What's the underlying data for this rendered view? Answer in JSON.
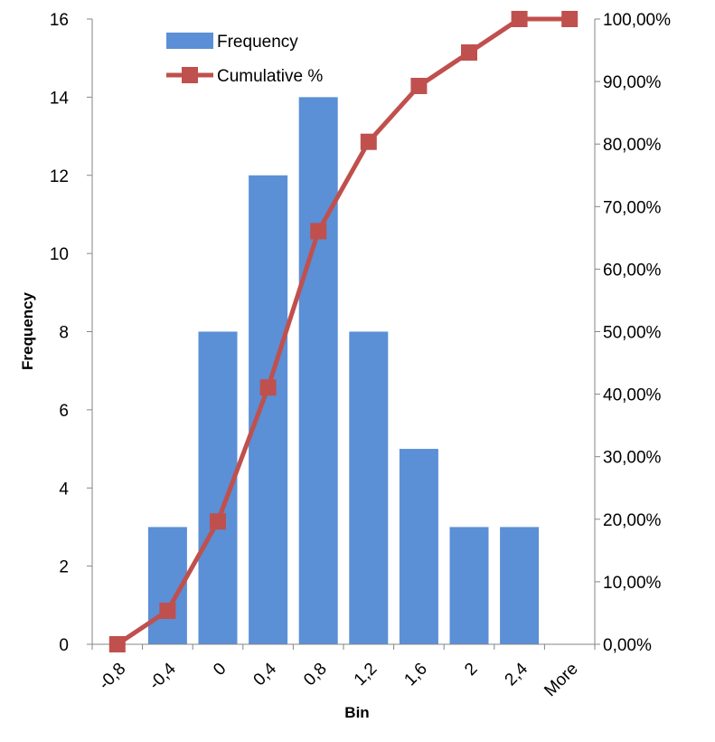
{
  "chart_data": {
    "type": "bar",
    "categories": [
      "-0,8",
      "-0,4",
      "0",
      "0,4",
      "0,8",
      "1,2",
      "1,6",
      "2",
      "2,4",
      "More"
    ],
    "series": [
      {
        "name": "Frequency",
        "type": "bar",
        "axis": "left",
        "color": "#5b8fd6",
        "values": [
          0,
          3,
          8,
          12,
          14,
          8,
          5,
          3,
          3,
          0
        ]
      },
      {
        "name": "Cumulative %",
        "type": "line",
        "axis": "right",
        "color": "#c0504d",
        "marker": "square",
        "values": [
          0,
          5.36,
          19.64,
          41.07,
          66.07,
          80.36,
          89.29,
          94.64,
          100,
          100
        ]
      }
    ],
    "xlabel": "Bin",
    "ylabel": "Frequency",
    "ylim": [
      0,
      16
    ],
    "y_ticks": [
      "0",
      "2",
      "4",
      "6",
      "8",
      "10",
      "12",
      "14",
      "16"
    ],
    "y2lim": [
      0,
      100
    ],
    "y2_ticks": [
      "0,00%",
      "10,00%",
      "20,00%",
      "30,00%",
      "40,00%",
      "50,00%",
      "60,00%",
      "70,00%",
      "80,00%",
      "90,00%",
      "100,00%"
    ],
    "legend_position": "top-left",
    "grid": false
  }
}
